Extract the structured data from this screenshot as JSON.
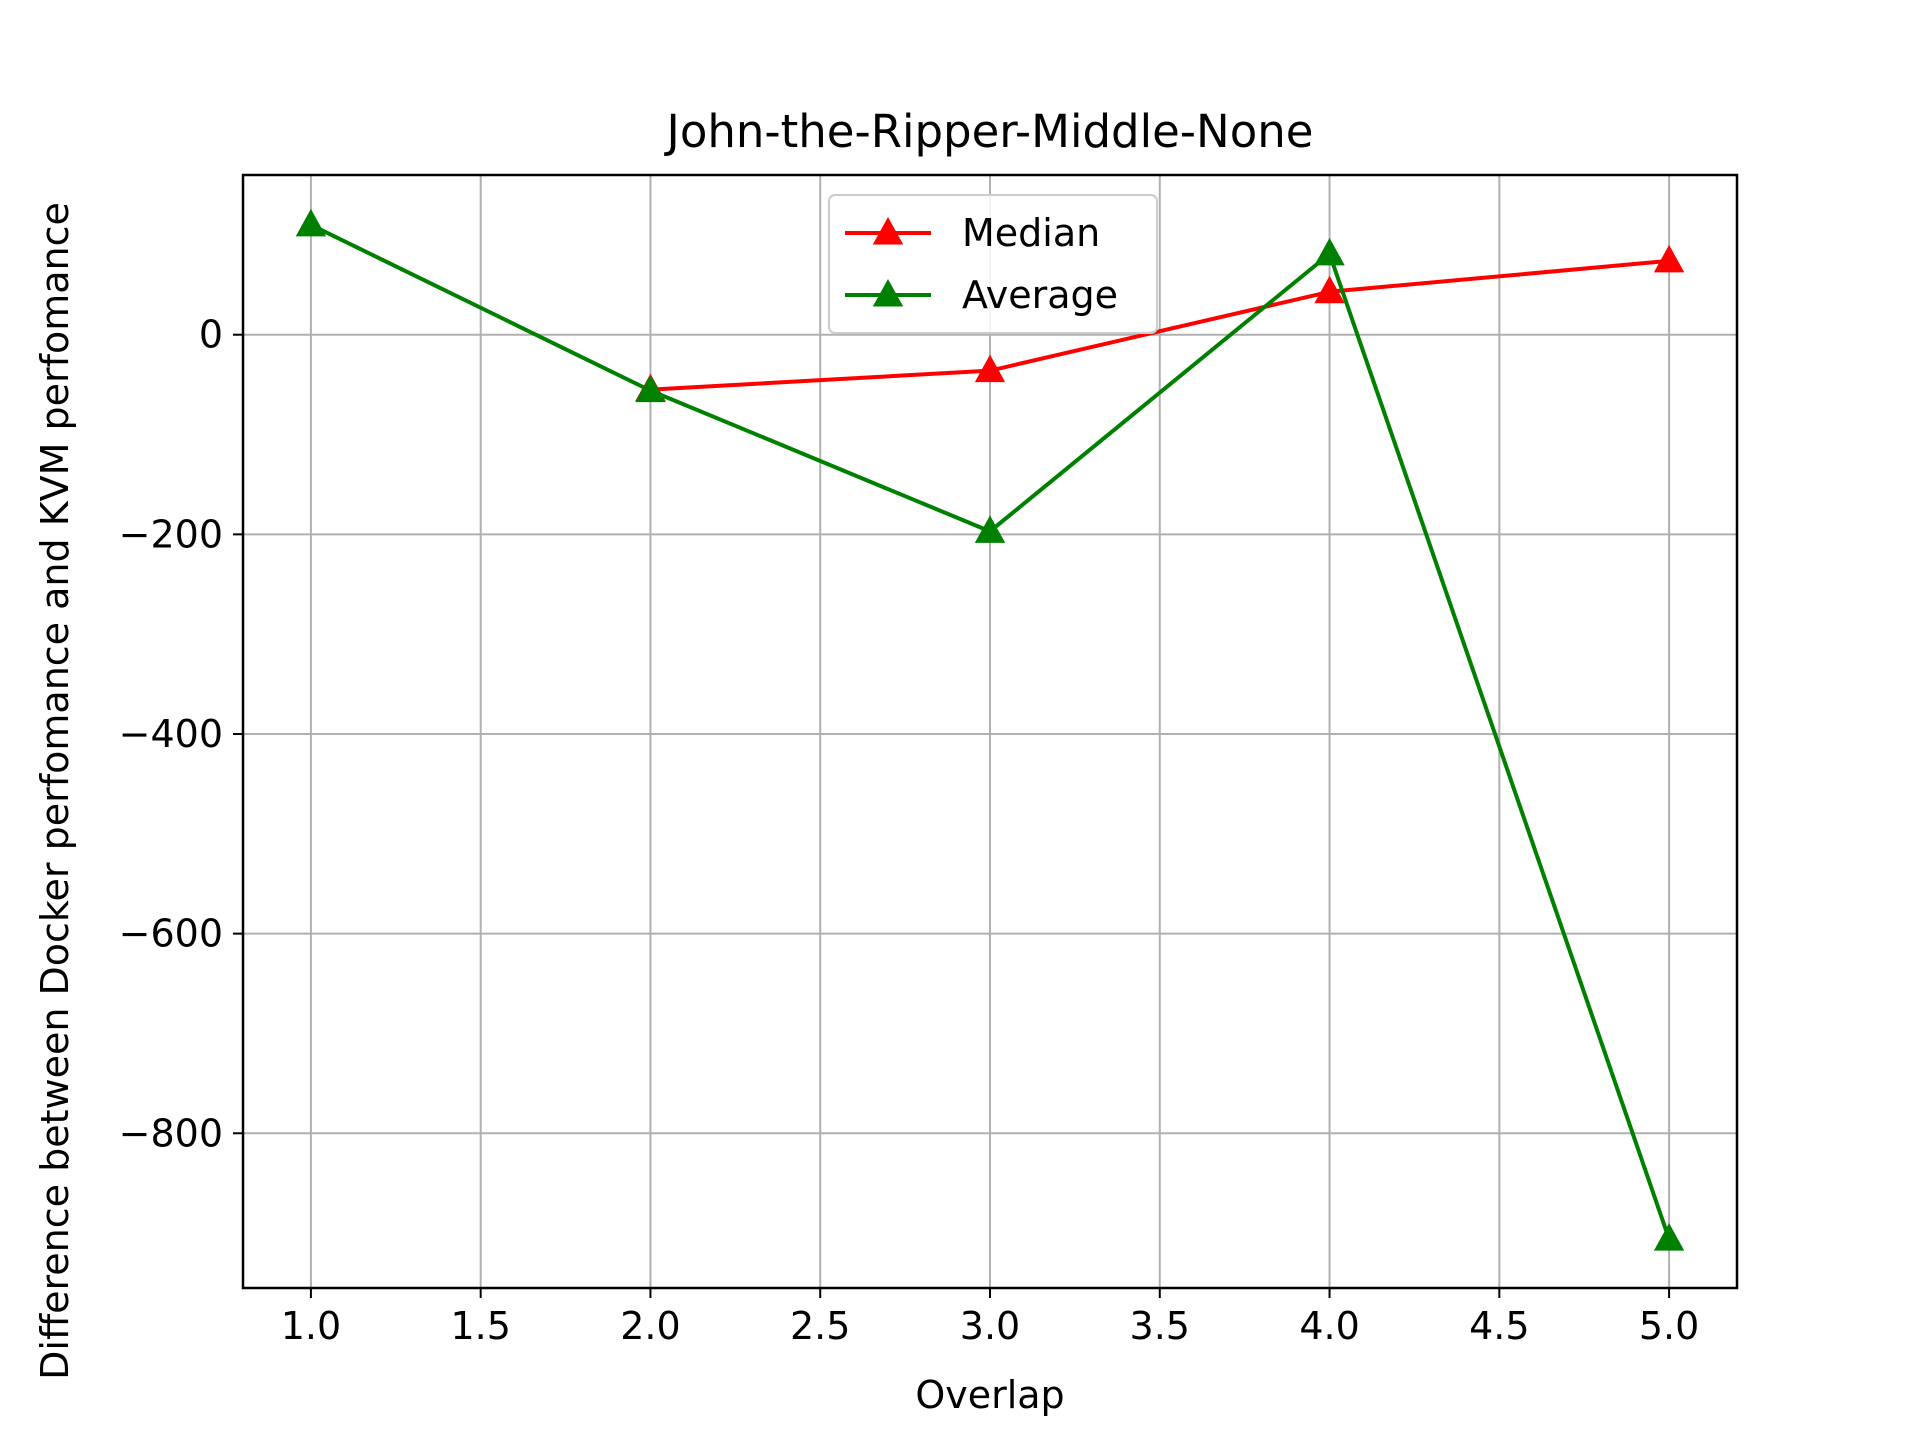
{
  "chart_data": {
    "type": "line",
    "title": "John-the-Ripper-Middle-None",
    "xlabel": "Overlap",
    "ylabel": "Difference between Docker perfomance and KVM perfomance",
    "x": [
      1.0,
      2.0,
      3.0,
      4.0,
      5.0
    ],
    "xlim": [
      0.8,
      5.2
    ],
    "ylim": [
      -955,
      160
    ],
    "xticks": [
      1.0,
      1.5,
      2.0,
      2.5,
      3.0,
      3.5,
      4.0,
      4.5,
      5.0
    ],
    "xtick_labels": [
      "1.0",
      "1.5",
      "2.0",
      "2.5",
      "3.0",
      "3.5",
      "4.0",
      "4.5",
      "5.0"
    ],
    "yticks": [
      0,
      -200,
      -400,
      -600,
      -800
    ],
    "ytick_labels": [
      "0",
      "−200",
      "−400",
      "−600",
      "−800"
    ],
    "grid": true,
    "legend_position": "top-center",
    "series": [
      {
        "name": "Median",
        "color": "#ff0000",
        "marker": "triangle-up",
        "values": [
          null,
          -55,
          -36,
          43,
          74
        ]
      },
      {
        "name": "Average",
        "color": "#008000",
        "marker": "triangle-up",
        "values": [
          110,
          -56,
          -197,
          81,
          -906
        ]
      }
    ]
  }
}
